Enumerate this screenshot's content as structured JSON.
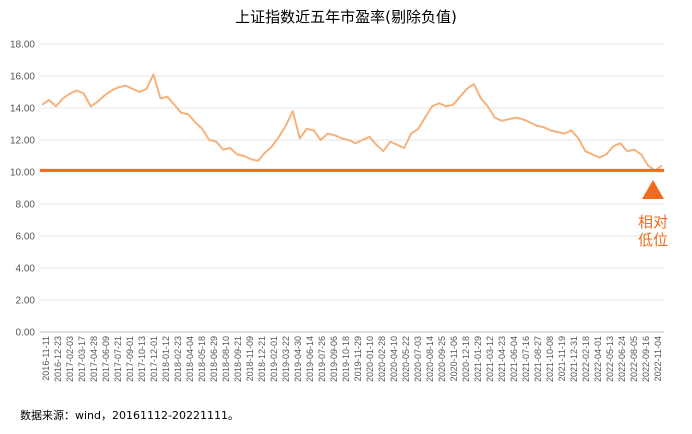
{
  "chart_data": {
    "type": "line",
    "title": "上证指数近五年市盈率(剔除负值)",
    "ylim": [
      0,
      18
    ],
    "yticks": [
      "0.00",
      "2.00",
      "4.00",
      "6.00",
      "8.00",
      "10.00",
      "12.00",
      "14.00",
      "16.00",
      "18.00"
    ],
    "grid": true,
    "x_tick_labels": [
      "2016-11-11",
      "2016-12-23",
      "2017-02-03",
      "2017-03-17",
      "2017-04-28",
      "2017-06-09",
      "2017-07-21",
      "2017-09-01",
      "2017-10-13",
      "2017-12-01",
      "2018-01-12",
      "2018-02-23",
      "2018-04-04",
      "2018-05-18",
      "2018-06-29",
      "2018-08-10",
      "2018-09-21",
      "2018-11-09",
      "2018-12-21",
      "2019-02-01",
      "2019-03-22",
      "2019-04-30",
      "2019-06-14",
      "2019-07-26",
      "2019-09-06",
      "2019-10-18",
      "2019-11-29",
      "2020-01-10",
      "2020-02-28",
      "2020-04-10",
      "2020-05-22",
      "2020-07-03",
      "2020-08-14",
      "2020-09-25",
      "2020-11-06",
      "2020-12-18",
      "2021-01-29",
      "2021-03-12",
      "2021-04-23",
      "2021-06-04",
      "2021-07-16",
      "2021-08-27",
      "2021-10-08",
      "2021-11-19",
      "2021-12-31",
      "2022-02-18",
      "2022-04-01",
      "2022-05-13",
      "2022-06-24",
      "2022-08-05",
      "2022-09-16",
      "2022-11-04"
    ],
    "series": [
      {
        "name": "",
        "color": "#f5b27c",
        "values": [
          14.2,
          14.5,
          14.1,
          14.6,
          14.9,
          15.1,
          14.9,
          14.1,
          14.4,
          14.8,
          15.1,
          15.3,
          15.4,
          15.2,
          15.0,
          15.2,
          16.1,
          14.6,
          14.7,
          14.2,
          13.7,
          13.6,
          13.1,
          12.7,
          12.0,
          11.9,
          11.4,
          11.5,
          11.1,
          11.0,
          10.8,
          10.7,
          11.2,
          11.6,
          12.2,
          12.9,
          13.8,
          12.1,
          12.7,
          12.6,
          12.0,
          12.4,
          12.3,
          12.1,
          12.0,
          11.8,
          12.0,
          12.2,
          11.7,
          11.3,
          11.9,
          11.7,
          11.5,
          12.4,
          12.7,
          13.4,
          14.1,
          14.3,
          14.1,
          14.2,
          14.7,
          15.2,
          15.5,
          14.6,
          14.1,
          13.4,
          13.2,
          13.3,
          13.4,
          13.3,
          13.1,
          12.9,
          12.8,
          12.6,
          12.5,
          12.4,
          12.6,
          12.1,
          11.3,
          11.1,
          10.9,
          11.1,
          11.6,
          11.8,
          11.3,
          11.4,
          11.1,
          10.4,
          10.1,
          10.4
        ]
      }
    ],
    "reference_line": {
      "value": 10.1,
      "color": "#f26b1d"
    },
    "annotation": {
      "text_line1": "相对",
      "text_line2": "低位",
      "color": "#f26b1d"
    },
    "source_note": "数据来源：wind，20161112-20221111。"
  }
}
